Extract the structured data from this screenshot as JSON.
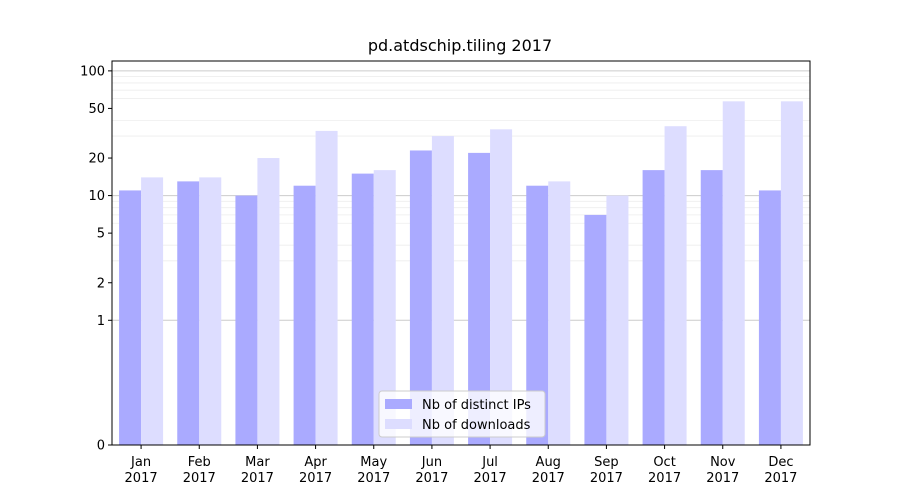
{
  "chart_data": {
    "type": "bar",
    "title": "pd.atdschip.tiling 2017",
    "xlabel": "",
    "ylabel": "",
    "yscale": "symlog",
    "ylim": [
      0,
      120
    ],
    "yticks": [
      {
        "value": 0,
        "label": "0"
      },
      {
        "value": 1,
        "label": "1"
      },
      {
        "value": 2,
        "label": "2"
      },
      {
        "value": 5,
        "label": "5"
      },
      {
        "value": 10,
        "label": "10"
      },
      {
        "value": 20,
        "label": "20"
      },
      {
        "value": 50,
        "label": "50"
      },
      {
        "value": 100,
        "label": "100"
      }
    ],
    "categories": [
      {
        "month": "Jan",
        "year": "2017"
      },
      {
        "month": "Feb",
        "year": "2017"
      },
      {
        "month": "Mar",
        "year": "2017"
      },
      {
        "month": "Apr",
        "year": "2017"
      },
      {
        "month": "May",
        "year": "2017"
      },
      {
        "month": "Jun",
        "year": "2017"
      },
      {
        "month": "Jul",
        "year": "2017"
      },
      {
        "month": "Aug",
        "year": "2017"
      },
      {
        "month": "Sep",
        "year": "2017"
      },
      {
        "month": "Oct",
        "year": "2017"
      },
      {
        "month": "Nov",
        "year": "2017"
      },
      {
        "month": "Dec",
        "year": "2017"
      }
    ],
    "series": [
      {
        "name": "Nb of distinct IPs",
        "color": "#aaaaff",
        "values": [
          11,
          13,
          10,
          12,
          15,
          23,
          22,
          12,
          7,
          16,
          16,
          11
        ]
      },
      {
        "name": "Nb of downloads",
        "color": "#ddddff",
        "values": [
          14,
          14,
          20,
          33,
          16,
          30,
          34,
          13,
          10,
          36,
          57,
          57
        ]
      }
    ],
    "legend": {
      "position": "lower-center"
    },
    "grid": {
      "major": true,
      "minor": true,
      "major_color": "#cccccc",
      "minor_color": "#eeeeee"
    }
  }
}
